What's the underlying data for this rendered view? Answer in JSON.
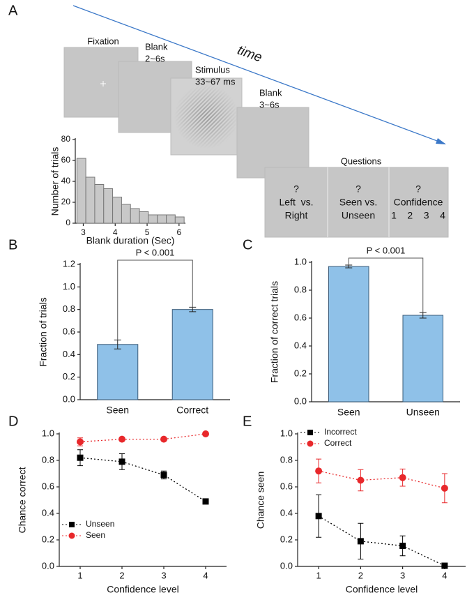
{
  "panel_a": {
    "panel": "A",
    "arrow_label": "time",
    "screens": [
      {
        "lines": [
          "Fixation"
        ]
      },
      {
        "lines": [
          "Blank",
          "2~6s"
        ]
      },
      {
        "lines": [
          "Stimulus",
          "33~67 ms"
        ]
      },
      {
        "lines": [
          "Blank",
          "3~6s"
        ]
      }
    ],
    "questions": {
      "title": "Questions",
      "items": [
        {
          "lines": [
            "?",
            "Left  vs.",
            "Right"
          ]
        },
        {
          "lines": [
            "?",
            "Seen vs.",
            "Unseen"
          ]
        },
        {
          "lines": [
            "?",
            "Confidence",
            "1    2    3    4"
          ]
        }
      ]
    }
  },
  "chart_data": [
    {
      "type": "histogram",
      "xlabel": "Blank duration (Sec)",
      "ylabel": "Number of trials",
      "bins": [
        2.8,
        3.08,
        3.36,
        3.64,
        3.92,
        4.2,
        4.48,
        4.76,
        5.04,
        5.32,
        5.6,
        5.88,
        6.16
      ],
      "counts": [
        62,
        44,
        37,
        33,
        25,
        18,
        14,
        11,
        8,
        8,
        8,
        6
      ],
      "color": "#c8c8c8",
      "xlim": [
        2.75,
        6.2
      ],
      "xticks": [
        3,
        4,
        5,
        6
      ],
      "ylim": [
        0,
        80
      ],
      "yticks": [
        0,
        20,
        40,
        60,
        80
      ]
    },
    {
      "type": "bar",
      "panel": "B",
      "ylabel": "Fraction of trials",
      "categories": [
        "Seen",
        "Correct"
      ],
      "values": [
        0.49,
        0.8
      ],
      "errors": [
        0.04,
        0.02
      ],
      "color": "#8fc1e8",
      "annotation": "P < 0.001",
      "ylim": [
        0,
        1.2
      ],
      "yticks": [
        {
          "value": 0,
          "label": "0.0"
        },
        0.2,
        0.4,
        0.6,
        0.8,
        {
          "value": 1,
          "label": "1.0"
        },
        1.2
      ]
    },
    {
      "type": "bar",
      "panel": "C",
      "ylabel": "Fraction of correct trials",
      "categories": [
        "Seen",
        "Unseen"
      ],
      "values": [
        0.97,
        0.62
      ],
      "errors": [
        0.01,
        0.02
      ],
      "color": "#8fc1e8",
      "annotation": "P < 0.001",
      "ylim": [
        0,
        1
      ],
      "yticks": [
        {
          "value": 0,
          "label": "0.0"
        },
        0.2,
        0.4,
        0.6,
        0.8,
        {
          "value": 1,
          "label": "1.0"
        }
      ]
    },
    {
      "type": "line",
      "panel": "D",
      "xlabel": "Confidence level",
      "ylabel": "Chance correct",
      "legend": "lower left",
      "x": [
        1,
        2,
        3,
        4
      ],
      "xlim": [
        0.5,
        4.5
      ],
      "xticks": [
        1,
        2,
        3,
        4
      ],
      "ylim": [
        0,
        1
      ],
      "yticks": [
        {
          "value": 0,
          "label": "0.0"
        },
        0.2,
        0.4,
        0.6,
        0.8,
        {
          "value": 1,
          "label": "1.0"
        }
      ],
      "series": [
        {
          "name": "Unseen",
          "color": "#000000",
          "marker": "square",
          "values": [
            0.82,
            0.79,
            0.69,
            0.49
          ],
          "errors": [
            0.06,
            0.06,
            0.03,
            0.01
          ]
        },
        {
          "name": "Seen",
          "color": "#e8282b",
          "marker": "circle",
          "values": [
            0.94,
            0.96,
            0.96,
            1.0
          ],
          "errors": [
            0.03,
            0.01,
            0.01,
            0
          ]
        }
      ]
    },
    {
      "type": "line",
      "panel": "E",
      "xlabel": "Confidence level",
      "ylabel": "Chance seen",
      "legend": "upper left",
      "x": [
        1,
        2,
        3,
        4
      ],
      "xlim": [
        0.5,
        4.5
      ],
      "xticks": [
        1,
        2,
        3,
        4
      ],
      "ylim": [
        0,
        1
      ],
      "yticks": [
        {
          "value": 0,
          "label": "0.0"
        },
        0.2,
        0.4,
        0.6,
        0.8,
        {
          "value": 1,
          "label": "1.0"
        }
      ],
      "series": [
        {
          "name": "Incorrect",
          "color": "#000000",
          "marker": "square",
          "values": [
            0.38,
            0.19,
            0.155,
            0.005
          ],
          "errors": [
            0.16,
            0.135,
            0.075,
            0.01
          ]
        },
        {
          "name": "Correct",
          "color": "#e8282b",
          "marker": "circle",
          "values": [
            0.72,
            0.65,
            0.67,
            0.59
          ],
          "errors": [
            0.09,
            0.08,
            0.065,
            0.11
          ]
        }
      ]
    }
  ]
}
